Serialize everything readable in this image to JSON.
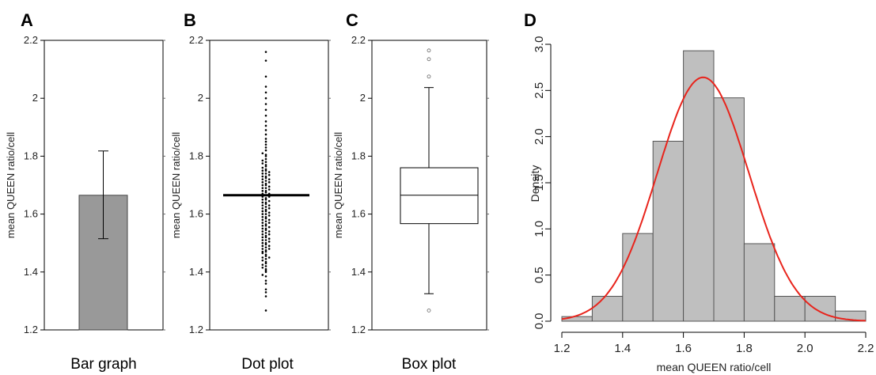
{
  "chart_data": [
    {
      "panel": "A",
      "type": "bar",
      "categories": [
        "Bar graph"
      ],
      "values": [
        1.665
      ],
      "error": {
        "low": 1.515,
        "high": 1.818
      },
      "ylabel": "mean QUEEN ratio/cell",
      "caption": "Bar graph",
      "ylim": [
        1.2,
        2.2
      ],
      "yticks": [
        "1.2",
        "1.4",
        "1.6",
        "1.8",
        "2",
        "2.2"
      ],
      "bar_color": "#999999"
    },
    {
      "panel": "B",
      "type": "scatter",
      "ylabel": "mean QUEEN ratio/cell",
      "caption": "Dot plot",
      "ylim": [
        1.2,
        2.2
      ],
      "yticks": [
        "1.2",
        "1.4",
        "1.6",
        "1.8",
        "2",
        "2.2"
      ],
      "mean": 1.665,
      "y": [
        1.267,
        1.316,
        1.33,
        1.34,
        1.36,
        1.37,
        1.385,
        1.39,
        1.4,
        1.405,
        1.41,
        1.415,
        1.42,
        1.425,
        1.43,
        1.435,
        1.44,
        1.445,
        1.45,
        1.45,
        1.455,
        1.46,
        1.465,
        1.47,
        1.47,
        1.475,
        1.48,
        1.48,
        1.485,
        1.49,
        1.49,
        1.495,
        1.5,
        1.5,
        1.505,
        1.51,
        1.51,
        1.515,
        1.52,
        1.52,
        1.525,
        1.53,
        1.53,
        1.535,
        1.54,
        1.54,
        1.545,
        1.55,
        1.55,
        1.555,
        1.56,
        1.56,
        1.565,
        1.57,
        1.57,
        1.575,
        1.58,
        1.58,
        1.585,
        1.59,
        1.59,
        1.595,
        1.6,
        1.6,
        1.605,
        1.61,
        1.61,
        1.615,
        1.62,
        1.62,
        1.625,
        1.63,
        1.63,
        1.635,
        1.64,
        1.64,
        1.645,
        1.65,
        1.65,
        1.655,
        1.66,
        1.66,
        1.665,
        1.67,
        1.67,
        1.675,
        1.68,
        1.68,
        1.685,
        1.69,
        1.69,
        1.695,
        1.7,
        1.7,
        1.705,
        1.71,
        1.71,
        1.715,
        1.72,
        1.72,
        1.725,
        1.73,
        1.73,
        1.735,
        1.74,
        1.74,
        1.745,
        1.75,
        1.75,
        1.755,
        1.76,
        1.765,
        1.77,
        1.775,
        1.78,
        1.785,
        1.79,
        1.8,
        1.805,
        1.81,
        1.82,
        1.83,
        1.84,
        1.85,
        1.86,
        1.875,
        1.89,
        1.905,
        1.92,
        1.94,
        1.96,
        1.98,
        2.0,
        2.02,
        2.04,
        2.075,
        2.13,
        2.16
      ]
    },
    {
      "panel": "C",
      "type": "box",
      "ylabel": "mean QUEEN ratio/cell",
      "caption": "Box plot",
      "ylim": [
        1.2,
        2.2
      ],
      "yticks": [
        "1.2",
        "1.4",
        "1.6",
        "1.8",
        "2",
        "2.2"
      ],
      "whisker_low": 1.325,
      "q1": 1.567,
      "median": 1.665,
      "q3": 1.76,
      "whisker_high": 2.037,
      "outliers": [
        1.267,
        2.075,
        2.135,
        2.165
      ]
    },
    {
      "panel": "D",
      "type": "bar",
      "subtype": "histogram",
      "xlabel": "mean QUEEN ratio/cell",
      "ylabel": "Density",
      "xlim": [
        1.2,
        2.2
      ],
      "ylim": [
        0,
        3.0
      ],
      "xticks": [
        "1.2",
        "1.4",
        "1.6",
        "1.8",
        "2.0",
        "2.2"
      ],
      "yticks": [
        "0.0",
        "0.5",
        "1.0",
        "1.5",
        "2.0",
        "2.5",
        "3.0"
      ],
      "bin_edges": [
        1.2,
        1.3,
        1.4,
        1.5,
        1.6,
        1.7,
        1.8,
        1.9,
        2.0,
        2.1,
        2.2
      ],
      "values": [
        0.05,
        0.27,
        0.95,
        1.95,
        2.93,
        2.42,
        0.84,
        0.27,
        0.27,
        0.11
      ],
      "bar_color": "#bfbfbf",
      "curve": {
        "type": "normal",
        "mean": 1.665,
        "sd": 0.151,
        "color": "#e8241c"
      }
    }
  ]
}
